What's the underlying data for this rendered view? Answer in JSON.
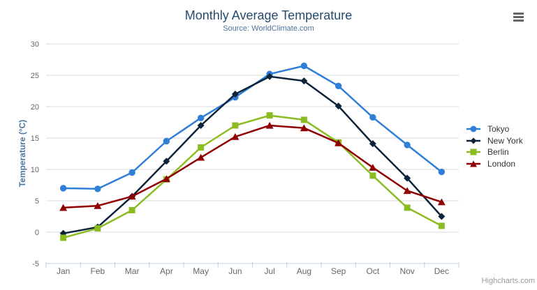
{
  "credits": "Highcharts.com",
  "chart_data": {
    "type": "line",
    "title": "Monthly Average Temperature",
    "subtitle": "Source: WorldClimate.com",
    "xlabel": "",
    "ylabel": "Temperature (°C)",
    "ylim": [
      -5,
      30
    ],
    "yticks": [
      -5,
      0,
      5,
      10,
      15,
      20,
      25,
      30
    ],
    "grid": true,
    "legend_position": "middle-right",
    "categories": [
      "Jan",
      "Feb",
      "Mar",
      "Apr",
      "May",
      "Jun",
      "Jul",
      "Aug",
      "Sep",
      "Oct",
      "Nov",
      "Dec"
    ],
    "series": [
      {
        "name": "Tokyo",
        "color": "#2f7ed8",
        "marker": "circle",
        "values": [
          7.0,
          6.9,
          9.5,
          14.5,
          18.2,
          21.5,
          25.2,
          26.5,
          23.3,
          18.3,
          13.9,
          9.6
        ]
      },
      {
        "name": "New York",
        "color": "#0d233a",
        "marker": "diamond",
        "values": [
          -0.2,
          0.8,
          5.7,
          11.3,
          17.0,
          22.0,
          24.8,
          24.1,
          20.1,
          14.1,
          8.6,
          2.5
        ]
      },
      {
        "name": "Berlin",
        "color": "#8bbc21",
        "marker": "square",
        "values": [
          -0.9,
          0.6,
          3.5,
          8.4,
          13.5,
          17.0,
          18.6,
          17.9,
          14.3,
          9.0,
          3.9,
          1.0
        ]
      },
      {
        "name": "London",
        "color": "#910000",
        "marker": "triangle",
        "values": [
          3.9,
          4.2,
          5.7,
          8.5,
          11.9,
          15.2,
          17.0,
          16.6,
          14.2,
          10.3,
          6.6,
          4.8
        ]
      }
    ]
  },
  "theme": {
    "background": "#FFFFFF",
    "title_color": "#274b6d",
    "subtitle_color": "#4d759e",
    "axis_title_color": "#4d759e",
    "axis_label_color": "#666666",
    "grid_color": "#D8D8D8",
    "axis_line_color": "#C0D0E0",
    "legend_text_color": "#333333",
    "credits_color": "#999999",
    "menu_icon_color": "#666666"
  }
}
